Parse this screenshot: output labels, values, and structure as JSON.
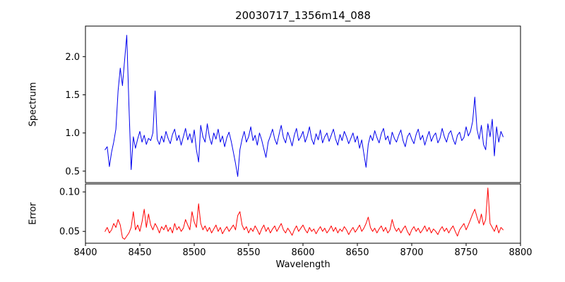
{
  "chart_data": {
    "type": "line",
    "title": "20030717_1356m14_088",
    "xlabel": "Wavelength",
    "xlim": [
      8400,
      8800
    ],
    "xticks": [
      8400,
      8450,
      8500,
      8550,
      8600,
      8650,
      8700,
      8750,
      8800
    ],
    "xtick_labels": [
      "8400",
      "8450",
      "8500",
      "8550",
      "8600",
      "8650",
      "8700",
      "8750",
      "8800"
    ],
    "layout": {
      "panels": "two stacked subplots sharing x-axis, no gap",
      "grid": false,
      "legend": "none"
    },
    "x": [
      8418,
      8420,
      8422,
      8424,
      8426,
      8428,
      8430,
      8432,
      8434,
      8436,
      8438,
      8440,
      8442,
      8444,
      8446,
      8448,
      8450,
      8452,
      8454,
      8456,
      8458,
      8460,
      8462,
      8464,
      8466,
      8468,
      8470,
      8472,
      8474,
      8476,
      8478,
      8480,
      8482,
      8484,
      8486,
      8488,
      8490,
      8492,
      8494,
      8496,
      8498,
      8500,
      8502,
      8504,
      8506,
      8508,
      8510,
      8512,
      8514,
      8516,
      8518,
      8520,
      8522,
      8524,
      8526,
      8528,
      8530,
      8532,
      8534,
      8536,
      8538,
      8540,
      8542,
      8544,
      8546,
      8548,
      8550,
      8552,
      8554,
      8556,
      8558,
      8560,
      8562,
      8564,
      8566,
      8568,
      8570,
      8572,
      8574,
      8576,
      8578,
      8580,
      8582,
      8584,
      8586,
      8588,
      8590,
      8592,
      8594,
      8596,
      8598,
      8600,
      8602,
      8604,
      8606,
      8608,
      8610,
      8612,
      8614,
      8616,
      8618,
      8620,
      8622,
      8624,
      8626,
      8628,
      8630,
      8632,
      8634,
      8636,
      8638,
      8640,
      8642,
      8644,
      8646,
      8648,
      8650,
      8652,
      8654,
      8656,
      8658,
      8660,
      8662,
      8664,
      8666,
      8668,
      8670,
      8672,
      8674,
      8676,
      8678,
      8680,
      8682,
      8684,
      8686,
      8688,
      8690,
      8692,
      8694,
      8696,
      8698,
      8700,
      8702,
      8704,
      8706,
      8708,
      8710,
      8712,
      8714,
      8716,
      8718,
      8720,
      8722,
      8724,
      8726,
      8728,
      8730,
      8732,
      8734,
      8736,
      8738,
      8740,
      8742,
      8744,
      8746,
      8748,
      8750,
      8752,
      8754,
      8756,
      8758,
      8760,
      8762,
      8764,
      8766,
      8768,
      8770,
      8772,
      8774,
      8776,
      8778,
      8780,
      8782,
      8784
    ],
    "series": [
      {
        "name": "Spectrum",
        "ylabel": "Spectrum",
        "color": "#0000ee",
        "ylim": [
          0.35,
          2.4
        ],
        "yticks": [
          0.5,
          1.0,
          1.5,
          2.0
        ],
        "ytick_labels": [
          "0.5",
          "1.0",
          "1.5",
          "2.0"
        ],
        "values": [
          0.78,
          0.82,
          0.56,
          0.75,
          0.88,
          1.05,
          1.55,
          1.85,
          1.62,
          1.95,
          2.28,
          1.35,
          0.52,
          0.95,
          0.8,
          0.92,
          1.02,
          0.88,
          0.97,
          0.85,
          0.93,
          0.9,
          1.0,
          1.55,
          0.92,
          0.85,
          0.96,
          0.88,
          1.02,
          0.93,
          0.86,
          0.98,
          1.05,
          0.9,
          0.97,
          0.84,
          0.95,
          1.06,
          0.91,
          0.99,
          0.87,
          1.04,
          0.78,
          0.62,
          1.1,
          0.95,
          0.88,
          1.12,
          0.94,
          0.85,
          1.0,
          0.92,
          1.05,
          0.88,
          0.96,
          0.82,
          0.94,
          1.01,
          0.89,
          0.75,
          0.6,
          0.43,
          0.78,
          0.92,
          1.02,
          0.88,
          0.95,
          1.08,
          0.9,
          0.97,
          0.84,
          1.0,
          0.91,
          0.79,
          0.68,
          0.88,
          0.96,
          1.05,
          0.92,
          0.85,
          0.98,
          1.1,
          0.94,
          0.87,
          1.01,
          0.93,
          0.83,
          0.97,
          1.06,
          0.9,
          0.95,
          1.02,
          0.88,
          0.96,
          1.08,
          0.92,
          0.85,
          0.99,
          0.91,
          1.04,
          0.87,
          0.95,
          1.0,
          0.89,
          0.97,
          1.05,
          0.92,
          0.84,
          0.98,
          0.9,
          1.02,
          0.95,
          0.86,
          0.93,
          1.0,
          0.88,
          0.96,
          0.8,
          0.91,
          0.73,
          0.55,
          0.85,
          0.97,
          0.9,
          1.03,
          0.94,
          0.87,
          0.99,
          1.06,
          0.91,
          0.96,
          0.85,
          1.01,
          0.93,
          0.88,
          0.97,
          1.04,
          0.9,
          0.82,
          0.95,
          1.0,
          0.92,
          0.86,
          0.98,
          1.05,
          0.91,
          0.97,
          0.84,
          0.94,
          1.02,
          0.89,
          0.96,
          1.0,
          0.87,
          0.93,
          1.06,
          0.95,
          0.88,
          0.99,
          1.03,
          0.92,
          0.85,
          0.97,
          1.01,
          0.9,
          0.94,
          1.08,
          0.96,
          1.02,
          1.15,
          1.47,
          1.05,
          0.92,
          1.1,
          0.85,
          0.78,
          1.12,
          0.95,
          1.18,
          0.7,
          1.08,
          0.88,
          1.02,
          0.95
        ]
      },
      {
        "name": "Error",
        "ylabel": "Error",
        "color": "#ff0000",
        "ylim": [
          0.035,
          0.11
        ],
        "yticks": [
          0.05,
          0.1
        ],
        "ytick_labels": [
          "0.05",
          "0.10"
        ],
        "values": [
          0.05,
          0.055,
          0.048,
          0.052,
          0.06,
          0.055,
          0.065,
          0.058,
          0.042,
          0.04,
          0.044,
          0.048,
          0.055,
          0.075,
          0.052,
          0.058,
          0.05,
          0.062,
          0.078,
          0.055,
          0.072,
          0.058,
          0.052,
          0.06,
          0.055,
          0.048,
          0.056,
          0.052,
          0.058,
          0.05,
          0.055,
          0.048,
          0.06,
          0.052,
          0.056,
          0.05,
          0.054,
          0.065,
          0.058,
          0.052,
          0.075,
          0.062,
          0.055,
          0.085,
          0.06,
          0.052,
          0.057,
          0.05,
          0.055,
          0.048,
          0.053,
          0.058,
          0.05,
          0.055,
          0.047,
          0.052,
          0.056,
          0.05,
          0.054,
          0.058,
          0.052,
          0.07,
          0.075,
          0.058,
          0.052,
          0.056,
          0.048,
          0.054,
          0.05,
          0.057,
          0.052,
          0.046,
          0.053,
          0.058,
          0.05,
          0.055,
          0.048,
          0.053,
          0.057,
          0.05,
          0.055,
          0.06,
          0.052,
          0.048,
          0.054,
          0.05,
          0.045,
          0.052,
          0.057,
          0.05,
          0.054,
          0.058,
          0.052,
          0.048,
          0.055,
          0.05,
          0.053,
          0.047,
          0.052,
          0.056,
          0.05,
          0.054,
          0.048,
          0.052,
          0.057,
          0.05,
          0.055,
          0.048,
          0.053,
          0.05,
          0.056,
          0.052,
          0.046,
          0.051,
          0.055,
          0.049,
          0.053,
          0.058,
          0.05,
          0.054,
          0.06,
          0.068,
          0.055,
          0.05,
          0.054,
          0.048,
          0.053,
          0.057,
          0.05,
          0.055,
          0.048,
          0.052,
          0.065,
          0.055,
          0.05,
          0.054,
          0.048,
          0.053,
          0.057,
          0.05,
          0.045,
          0.052,
          0.056,
          0.05,
          0.054,
          0.048,
          0.052,
          0.057,
          0.05,
          0.055,
          0.048,
          0.053,
          0.05,
          0.046,
          0.052,
          0.056,
          0.05,
          0.054,
          0.048,
          0.053,
          0.057,
          0.05,
          0.044,
          0.052,
          0.056,
          0.06,
          0.052,
          0.058,
          0.065,
          0.072,
          0.078,
          0.068,
          0.06,
          0.072,
          0.058,
          0.065,
          0.105,
          0.06,
          0.055,
          0.05,
          0.058,
          0.048,
          0.055,
          0.052
        ]
      }
    ]
  }
}
